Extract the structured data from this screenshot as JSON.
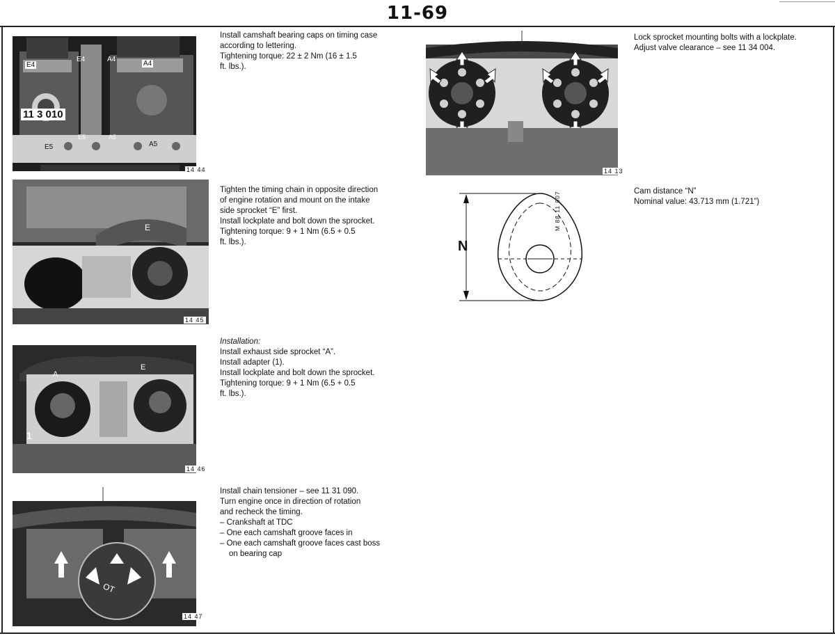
{
  "page": {
    "number": "11-69"
  },
  "figures": {
    "fig1": {
      "code": "14 44",
      "labels": {
        "e4a": "E4",
        "e4b": "E4",
        "a4a": "A4",
        "a4b": "A4",
        "tool": "11 3 010",
        "e5a": "E5",
        "e5b": "E5",
        "a5a": "A5",
        "a5b": "A5"
      }
    },
    "fig2": {
      "code": "14 45",
      "labels": {
        "e": "E"
      }
    },
    "fig3": {
      "code": "14 46",
      "labels": {
        "a": "A",
        "e": "E",
        "one": "1"
      }
    },
    "fig4": {
      "code": "14 47",
      "labels": {
        "ot": "OT"
      }
    },
    "fig5": {
      "code": "14 13"
    },
    "fig6": {
      "code": "M 88 11 007",
      "labels": {
        "n": "N"
      }
    }
  },
  "sections": {
    "s1": {
      "lines": [
        "Install camshaft bearing caps on timing case",
        "according to lettering.",
        "Tightening torque: 22 ± 2 Nm (16 ± 1.5",
        "ft. lbs.)."
      ]
    },
    "s2": {
      "lines": [
        "Tighten the timing chain in opposite direction",
        "of engine rotation and mount on the intake",
        "side sprocket “E” first.",
        "Install lockplate and bolt down the sprocket.",
        "Tightening torque: 9 + 1 Nm (6.5 + 0.5",
        "ft. lbs.)."
      ]
    },
    "s3": {
      "heading": "Installation:",
      "lines": [
        "Install exhaust side sprocket “A”.",
        "Install adapter (1).",
        "Install lockplate and bolt down the sprocket.",
        "Tightening torque: 9 + 1 Nm (6.5 + 0.5",
        "ft. lbs.)."
      ]
    },
    "s4": {
      "lines": [
        "Install chain tensioner – see 11 31 090.",
        "Turn engine once in direction of rotation",
        "and recheck the timing."
      ],
      "bullets": [
        "–  Crankshaft at TDC",
        "–  One each camshaft groove faces in",
        "–  One each camshaft groove faces cast boss",
        "on bearing cap"
      ]
    },
    "s5": {
      "lines": [
        "Lock sprocket mounting bolts with a lockplate.",
        "Adjust valve clearance – see 11 34 004."
      ]
    },
    "s6": {
      "lines": [
        "Cam distance “N”",
        "Nominal value: 43.713 mm (1.721”)"
      ]
    }
  }
}
